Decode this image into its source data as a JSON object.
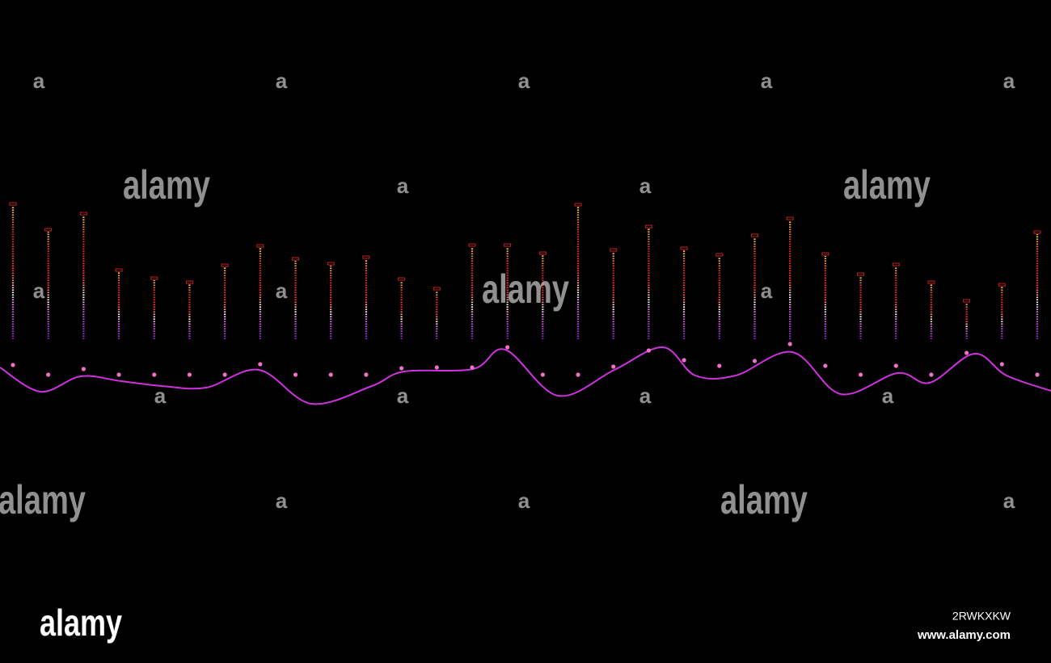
{
  "watermarks": {
    "large": "alamy",
    "small": "a"
  },
  "footer": {
    "logo": "alamy",
    "image_id": "2RWKXKW",
    "url": "www.alamy.com"
  }
}
